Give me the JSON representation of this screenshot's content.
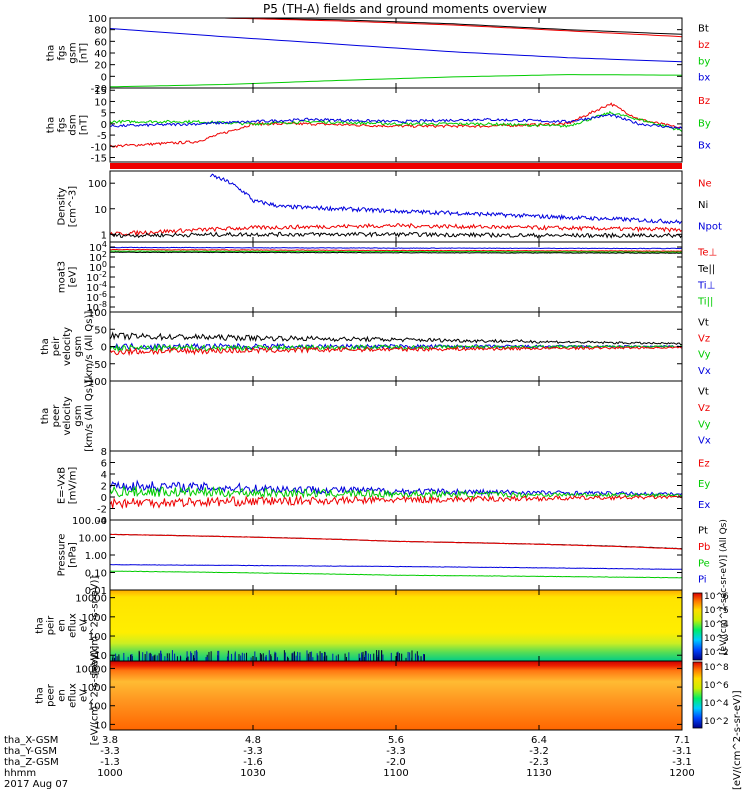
{
  "title": "P5 (TH-A) fields and ground moments overview",
  "footer": {
    "date": "2017 Aug 07",
    "rows": [
      {
        "label": "tha_X-GSM",
        "values": [
          "3.8",
          "4.8",
          "5.6",
          "6.4",
          "7.1"
        ]
      },
      {
        "label": "tha_Y-GSM",
        "values": [
          "-3.3",
          "-3.3",
          "-3.3",
          "-3.2",
          "-3.1"
        ]
      },
      {
        "label": "tha_Z-GSM",
        "values": [
          "-1.3",
          "-1.6",
          "-2.0",
          "-2.3",
          "-3.1"
        ]
      },
      {
        "label": "hhmm",
        "values": [
          "1000",
          "1030",
          "1100",
          "1130",
          "1200"
        ]
      }
    ]
  },
  "colorbar": {
    "label": "[eV/(cm^2-s-sr-eV)]",
    "label_ions": "[eV/(cm^2-sec-sr-eV)] (All Qs)",
    "ticks_top": [
      "10^6",
      "10^5",
      "10^4",
      "10^3",
      "10^2"
    ],
    "ticks_bottom": [
      "10^8",
      "10^6",
      "10^4",
      "10^2"
    ]
  },
  "chart_data": [
    {
      "type": "line",
      "id": "p1",
      "ylabel": [
        "tha",
        "fgs",
        "gsm",
        "[nT]"
      ],
      "ticks": [
        "100",
        "80",
        "60",
        "40",
        "20",
        "0",
        "-20"
      ],
      "ylim": [
        -20,
        100
      ],
      "legend": [
        {
          "name": "Bt",
          "color": "#000000"
        },
        {
          "name": "bz",
          "color": "#ee0000"
        },
        {
          "name": "by",
          "color": "#00cc00"
        },
        {
          "name": "bx",
          "color": "#0000dd"
        }
      ],
      "series": [
        {
          "name": "Bt",
          "color": "#000000",
          "x": [
            0,
            0.4,
            0.8,
            1.2,
            1.6,
            2.0
          ],
          "y": [
            100,
            100,
            97,
            90,
            80,
            72
          ]
        },
        {
          "name": "bz",
          "color": "#ee0000",
          "x": [
            0,
            0.4,
            0.8,
            1.2,
            1.6,
            2.0
          ],
          "y": [
            100,
            100,
            95,
            88,
            78,
            68
          ]
        },
        {
          "name": "bx",
          "color": "#0000dd",
          "x": [
            0,
            0.4,
            0.8,
            1.2,
            1.6,
            2.0
          ],
          "y": [
            82,
            68,
            55,
            42,
            32,
            25
          ]
        },
        {
          "name": "by",
          "color": "#00cc00",
          "x": [
            0,
            0.4,
            0.8,
            1.2,
            1.6,
            2.0
          ],
          "y": [
            -18,
            -14,
            -7,
            -1,
            3,
            2
          ]
        }
      ]
    },
    {
      "type": "line",
      "id": "p2",
      "ylabel": [
        "tha",
        "fgs",
        "dsm",
        "[nT]"
      ],
      "ticks": [
        "15",
        "10",
        "5",
        "0",
        "-5",
        "-10",
        "-15"
      ],
      "ylim": [
        -17,
        16
      ],
      "legend": [
        {
          "name": "Bz",
          "color": "#ee0000"
        },
        {
          "name": "By",
          "color": "#00cc00"
        },
        {
          "name": "Bx",
          "color": "#0000dd"
        }
      ],
      "series": [
        {
          "name": "Bz",
          "color": "#ee0000",
          "x": [
            0,
            0.3,
            0.5,
            0.7,
            1.0,
            1.3,
            1.6,
            1.75,
            1.85,
            2.0
          ],
          "y": [
            -10,
            -8,
            0,
            0,
            -1,
            -1,
            0,
            9,
            2,
            -2
          ]
        },
        {
          "name": "By",
          "color": "#00cc00",
          "x": [
            0,
            0.3,
            0.5,
            0.7,
            1.0,
            1.3,
            1.6,
            1.75,
            1.85,
            2.0
          ],
          "y": [
            1,
            1,
            0,
            1,
            0,
            0,
            -1,
            5,
            2,
            -3
          ]
        },
        {
          "name": "Bx",
          "color": "#0000dd",
          "x": [
            0,
            0.3,
            0.5,
            0.7,
            1.0,
            1.3,
            1.6,
            1.75,
            1.85,
            2.0
          ],
          "y": [
            -1,
            0,
            1,
            2,
            1,
            2,
            1,
            4,
            0,
            -2
          ]
        }
      ]
    },
    {
      "type": "line",
      "id": "p3",
      "ylabel": [
        "Density",
        "[cm^-3]"
      ],
      "scale": "log",
      "ticks": [
        "100",
        "10",
        "1"
      ],
      "ylim": [
        0.5,
        300
      ],
      "legend": [
        {
          "name": "Ne",
          "color": "#ee0000"
        },
        {
          "name": "Ni",
          "color": "#000000"
        },
        {
          "name": "Npot",
          "color": "#0000dd"
        }
      ],
      "series": [
        {
          "name": "Npot",
          "color": "#0000dd",
          "x": [
            0.35,
            0.45,
            0.5,
            0.6,
            1.0,
            1.5,
            2.0
          ],
          "y": [
            200,
            60,
            20,
            12,
            8,
            5,
            3
          ]
        },
        {
          "name": "Ne",
          "color": "#ee0000",
          "x": [
            0,
            0.5,
            1.0,
            1.5,
            2.0
          ],
          "y": [
            1.0,
            1.8,
            2.2,
            1.8,
            1.5
          ]
        },
        {
          "name": "Ni",
          "color": "#000000",
          "x": [
            0,
            0.5,
            1.0,
            1.5,
            2.0
          ],
          "y": [
            0.9,
            1.0,
            1.0,
            0.9,
            0.9
          ]
        }
      ]
    },
    {
      "type": "line",
      "id": "p4",
      "ylabel": [
        "moat3",
        "[eV]"
      ],
      "scale": "log",
      "ticks": [
        "10^4",
        "10^2",
        "10^0",
        "10^-2",
        "10^-4",
        "10^-6",
        "10^-8"
      ],
      "ylim": [
        1e-09,
        100000.0
      ],
      "legend": [
        {
          "name": "Te⊥",
          "color": "#ee0000"
        },
        {
          "name": "Te||",
          "color": "#000000"
        },
        {
          "name": "Ti⊥",
          "color": "#0000dd"
        },
        {
          "name": "Ti||",
          "color": "#00cc00"
        }
      ],
      "series": [
        {
          "name": "Ti⊥",
          "color": "#0000dd",
          "x": [
            0,
            1.0,
            2.0
          ],
          "y": [
            8000,
            6000,
            5000
          ]
        },
        {
          "name": "Te⊥",
          "color": "#ee0000",
          "x": [
            0,
            1.0,
            2.0
          ],
          "y": [
            3000,
            2000,
            1500
          ]
        },
        {
          "name": "Ti||",
          "color": "#00cc00",
          "x": [
            0,
            1.0,
            2.0
          ],
          "y": [
            1500,
            1200,
            1000
          ]
        },
        {
          "name": "Te||",
          "color": "#000000",
          "x": [
            0,
            1.0,
            2.0
          ],
          "y": [
            900,
            700,
            600
          ]
        }
      ]
    },
    {
      "type": "line",
      "id": "p5",
      "ylabel": [
        "tha",
        "peir",
        "velocity",
        "gsm",
        "[km/s (All Qs)]"
      ],
      "ticks": [
        "100",
        "50",
        "0",
        "-50",
        "-100"
      ],
      "ylim": [
        -100,
        100
      ],
      "legend": [
        {
          "name": "Vt",
          "color": "#000000"
        },
        {
          "name": "Vz",
          "color": "#ee0000"
        },
        {
          "name": "Vy",
          "color": "#00cc00"
        },
        {
          "name": "Vx",
          "color": "#0000dd"
        }
      ],
      "series": [
        {
          "name": "Vt",
          "color": "#000000",
          "x": [
            0,
            1.0,
            2.0
          ],
          "y": [
            30,
            20,
            8
          ]
        },
        {
          "name": "Vx",
          "color": "#0000dd",
          "x": [
            0,
            1.0,
            2.0
          ],
          "y": [
            0,
            0,
            0
          ]
        },
        {
          "name": "Vy",
          "color": "#00cc00",
          "x": [
            0,
            1.0,
            2.0
          ],
          "y": [
            -5,
            -2,
            0
          ]
        },
        {
          "name": "Vz",
          "color": "#ee0000",
          "x": [
            0,
            1.0,
            2.0
          ],
          "y": [
            -15,
            -8,
            -3
          ]
        }
      ]
    },
    {
      "type": "line",
      "id": "p6",
      "ylabel": [
        "tha",
        "peer",
        "velocity",
        "gsm",
        "[km/s (All Qs)]"
      ],
      "ticks": [],
      "ylim": [
        0,
        1
      ],
      "legend": [
        {
          "name": "Vt",
          "color": "#000000"
        },
        {
          "name": "Vz",
          "color": "#ee0000"
        },
        {
          "name": "Vy",
          "color": "#00cc00"
        },
        {
          "name": "Vx",
          "color": "#0000dd"
        }
      ],
      "series": []
    },
    {
      "type": "line",
      "id": "p7",
      "ylabel": [
        "E=-VxB",
        "[mV/m]"
      ],
      "ticks": [
        "8",
        "6",
        "4",
        "2",
        "0",
        "-2",
        "-4"
      ],
      "ylim": [
        -4,
        8
      ],
      "legend": [
        {
          "name": "Ez",
          "color": "#ee0000"
        },
        {
          "name": "Ey",
          "color": "#00cc00"
        },
        {
          "name": "Ex",
          "color": "#0000dd"
        }
      ],
      "series": [
        {
          "name": "Ex",
          "color": "#0000dd",
          "x": [
            0,
            1.0,
            2.0
          ],
          "y": [
            2,
            1,
            0.5
          ]
        },
        {
          "name": "Ey",
          "color": "#00cc00",
          "x": [
            0,
            1.0,
            2.0
          ],
          "y": [
            1,
            0.5,
            0.3
          ]
        },
        {
          "name": "Ez",
          "color": "#ee0000",
          "x": [
            0,
            1.0,
            2.0
          ],
          "y": [
            -1,
            -0.5,
            0
          ]
        }
      ]
    },
    {
      "type": "line",
      "id": "p8",
      "ylabel": [
        "Pressure",
        "[nPa]"
      ],
      "scale": "log",
      "ticks": [
        "100.00",
        "10.00",
        "1.00",
        "0.10",
        "0.01"
      ],
      "ylim": [
        0.01,
        100
      ],
      "legend": [
        {
          "name": "Pt",
          "color": "#000000"
        },
        {
          "name": "Pb",
          "color": "#ee0000"
        },
        {
          "name": "Pe",
          "color": "#00cc00"
        },
        {
          "name": "Pi",
          "color": "#0000dd"
        }
      ],
      "series": [
        {
          "name": "Pt",
          "color": "#000000",
          "x": [
            0,
            1.0,
            2.0
          ],
          "y": [
            15,
            6,
            2.3
          ]
        },
        {
          "name": "Pb",
          "color": "#ee0000",
          "x": [
            0,
            1.0,
            2.0
          ],
          "y": [
            15,
            6,
            2.2
          ]
        },
        {
          "name": "Pi",
          "color": "#0000dd",
          "x": [
            0,
            1.0,
            2.0
          ],
          "y": [
            0.28,
            0.22,
            0.15
          ]
        },
        {
          "name": "Pe",
          "color": "#00cc00",
          "x": [
            0,
            1.0,
            2.0
          ],
          "y": [
            0.12,
            0.07,
            0.05
          ]
        }
      ]
    },
    {
      "type": "heatmap",
      "id": "p9",
      "ylabel": [
        "tha",
        "peir",
        "en",
        "eflux",
        "eV",
        "[eV/(cm^2-s-sr-eV)]"
      ],
      "scale": "log",
      "ticks": [
        "10000",
        "1000",
        "100",
        "10"
      ],
      "ylim": [
        5,
        25000
      ]
    },
    {
      "type": "heatmap",
      "id": "p10",
      "ylabel": [
        "tha",
        "peer",
        "en",
        "eflux",
        "eV",
        "[eV/(cm^2-s-sr-eV)]"
      ],
      "scale": "log",
      "ticks": [
        "10000",
        "1000",
        "100",
        "10"
      ],
      "ylim": [
        5,
        25000
      ]
    }
  ]
}
